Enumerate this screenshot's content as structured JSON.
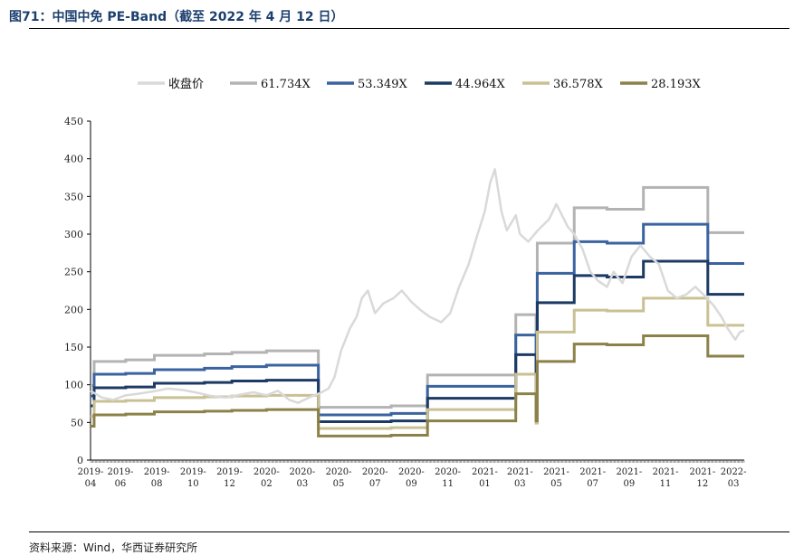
{
  "header": {
    "title": "图71：中国中免 PE-Band（截至 2022 年 4 月 12 日）"
  },
  "footer": {
    "source": "资料来源：Wind，华西证券研究所"
  },
  "chart_data": {
    "type": "line",
    "ylim": [
      0,
      450
    ],
    "yticks": [
      0,
      50,
      100,
      150,
      200,
      250,
      300,
      350,
      400,
      450
    ],
    "x_range": [
      "2019-04-12",
      "2022-04-12"
    ],
    "xticks": [
      {
        "date": "2019-04-01",
        "label": [
          "2019-",
          "04"
        ]
      },
      {
        "date": "2019-06-01",
        "label": [
          "2019-",
          "06"
        ]
      },
      {
        "date": "2019-08-01",
        "label": [
          "2019-",
          "08"
        ]
      },
      {
        "date": "2019-10-01",
        "label": [
          "2019-",
          "10"
        ]
      },
      {
        "date": "2019-12-01",
        "label": [
          "2019-",
          "12"
        ]
      },
      {
        "date": "2020-02-01",
        "label": [
          "2020-",
          "02"
        ]
      },
      {
        "date": "2020-04-01",
        "label": [
          "2020-",
          "03"
        ]
      },
      {
        "date": "2020-06-01",
        "label": [
          "2020-",
          "05"
        ]
      },
      {
        "date": "2020-08-01",
        "label": [
          "2020-",
          "07"
        ]
      },
      {
        "date": "2020-10-01",
        "label": [
          "2020-",
          "09"
        ]
      },
      {
        "date": "2020-12-01",
        "label": [
          "2020-",
          "11"
        ]
      },
      {
        "date": "2021-02-01",
        "label": [
          "2021-",
          "01"
        ]
      },
      {
        "date": "2021-04-01",
        "label": [
          "2021-",
          "03"
        ]
      },
      {
        "date": "2021-06-01",
        "label": [
          "2021-",
          "05"
        ]
      },
      {
        "date": "2021-08-01",
        "label": [
          "2021-",
          "07"
        ]
      },
      {
        "date": "2021-10-01",
        "label": [
          "2021-",
          "09"
        ]
      },
      {
        "date": "2021-12-01",
        "label": [
          "2021-",
          "11"
        ]
      },
      {
        "date": "2022-02-01",
        "label": [
          "2021-",
          "12"
        ]
      },
      {
        "date": "2022-03-25",
        "label": [
          "2022-",
          "03"
        ]
      }
    ],
    "grid": false,
    "legend_position": "top",
    "series": [
      {
        "name": "收盘价",
        "color": "#d9d9d9",
        "kind": "price",
        "points": [
          [
            "2019-04-12",
            92
          ],
          [
            "2019-05-01",
            83
          ],
          [
            "2019-05-20",
            80
          ],
          [
            "2019-06-10",
            86
          ],
          [
            "2019-07-01",
            88
          ],
          [
            "2019-07-25",
            91
          ],
          [
            "2019-08-20",
            95
          ],
          [
            "2019-09-15",
            93
          ],
          [
            "2019-10-10",
            89
          ],
          [
            "2019-11-01",
            85
          ],
          [
            "2019-11-25",
            83
          ],
          [
            "2019-12-20",
            87
          ],
          [
            "2020-01-10",
            90
          ],
          [
            "2020-02-01",
            86
          ],
          [
            "2020-02-20",
            92
          ],
          [
            "2020-03-10",
            80
          ],
          [
            "2020-03-25",
            76
          ],
          [
            "2020-04-15",
            84
          ],
          [
            "2020-05-01",
            89
          ],
          [
            "2020-05-15",
            95
          ],
          [
            "2020-05-25",
            110
          ],
          [
            "2020-06-05",
            145
          ],
          [
            "2020-06-20",
            175
          ],
          [
            "2020-07-01",
            190
          ],
          [
            "2020-07-10",
            215
          ],
          [
            "2020-07-20",
            225
          ],
          [
            "2020-08-01",
            195
          ],
          [
            "2020-08-15",
            208
          ],
          [
            "2020-09-01",
            215
          ],
          [
            "2020-09-15",
            225
          ],
          [
            "2020-10-01",
            210
          ],
          [
            "2020-10-15",
            200
          ],
          [
            "2020-11-01",
            190
          ],
          [
            "2020-11-20",
            183
          ],
          [
            "2020-12-05",
            195
          ],
          [
            "2020-12-20",
            230
          ],
          [
            "2021-01-05",
            260
          ],
          [
            "2021-01-20",
            300
          ],
          [
            "2021-02-01",
            330
          ],
          [
            "2021-02-10",
            368
          ],
          [
            "2021-02-18",
            386
          ],
          [
            "2021-03-01",
            330
          ],
          [
            "2021-03-10",
            305
          ],
          [
            "2021-03-25",
            325
          ],
          [
            "2021-04-01",
            300
          ],
          [
            "2021-04-15",
            290
          ],
          [
            "2021-05-01",
            305
          ],
          [
            "2021-05-20",
            320
          ],
          [
            "2021-06-01",
            340
          ],
          [
            "2021-06-20",
            310
          ],
          [
            "2021-07-01",
            300
          ],
          [
            "2021-07-15",
            280
          ],
          [
            "2021-07-28",
            250
          ],
          [
            "2021-08-10",
            238
          ],
          [
            "2021-08-25",
            230
          ],
          [
            "2021-09-05",
            250
          ],
          [
            "2021-09-20",
            235
          ],
          [
            "2021-10-05",
            270
          ],
          [
            "2021-10-20",
            285
          ],
          [
            "2021-11-05",
            270
          ],
          [
            "2021-11-20",
            260
          ],
          [
            "2021-12-05",
            225
          ],
          [
            "2021-12-20",
            215
          ],
          [
            "2022-01-05",
            220
          ],
          [
            "2022-01-20",
            230
          ],
          [
            "2022-02-05",
            218
          ],
          [
            "2022-02-20",
            205
          ],
          [
            "2022-03-05",
            190
          ],
          [
            "2022-03-15",
            175
          ],
          [
            "2022-03-28",
            160
          ],
          [
            "2022-04-05",
            170
          ],
          [
            "2022-04-12",
            172
          ]
        ]
      },
      {
        "name": "61.734X",
        "color": "#b3b3b3",
        "kind": "step",
        "steps": [
          [
            "2019-04-12",
            99
          ],
          [
            "2019-04-18",
            131
          ],
          [
            "2019-06-10",
            133
          ],
          [
            "2019-07-28",
            139
          ],
          [
            "2019-10-20",
            141
          ],
          [
            "2019-12-05",
            143
          ],
          [
            "2020-02-01",
            145
          ],
          [
            "2020-04-01",
            145
          ],
          [
            "2020-04-28",
            70
          ],
          [
            "2020-08-28",
            72
          ],
          [
            "2020-10-28",
            113
          ],
          [
            "2021-03-25",
            193
          ],
          [
            "2021-04-28",
            82
          ],
          [
            "2021-04-30",
            288
          ],
          [
            "2021-07-01",
            335
          ],
          [
            "2021-08-25",
            333
          ],
          [
            "2021-10-25",
            362
          ],
          [
            "2022-02-10",
            302
          ],
          [
            "2022-04-12",
            302
          ]
        ]
      },
      {
        "name": "53.349X",
        "color": "#3a63a0",
        "kind": "step",
        "steps": [
          [
            "2019-04-12",
            85
          ],
          [
            "2019-04-18",
            114
          ],
          [
            "2019-06-10",
            115
          ],
          [
            "2019-07-28",
            120
          ],
          [
            "2019-10-20",
            122
          ],
          [
            "2019-12-05",
            124
          ],
          [
            "2020-02-01",
            126
          ],
          [
            "2020-04-01",
            126
          ],
          [
            "2020-04-28",
            60
          ],
          [
            "2020-08-28",
            62
          ],
          [
            "2020-10-28",
            98
          ],
          [
            "2021-03-25",
            166
          ],
          [
            "2021-04-28",
            71
          ],
          [
            "2021-04-30",
            248
          ],
          [
            "2021-07-01",
            290
          ],
          [
            "2021-08-25",
            288
          ],
          [
            "2021-10-25",
            313
          ],
          [
            "2022-02-10",
            261
          ],
          [
            "2022-04-12",
            261
          ]
        ]
      },
      {
        "name": "44.964X",
        "color": "#1c3a63",
        "kind": "step",
        "steps": [
          [
            "2019-04-12",
            72
          ],
          [
            "2019-04-18",
            96
          ],
          [
            "2019-06-10",
            97
          ],
          [
            "2019-07-28",
            102
          ],
          [
            "2019-10-20",
            103
          ],
          [
            "2019-12-05",
            105
          ],
          [
            "2020-02-01",
            106
          ],
          [
            "2020-04-01",
            106
          ],
          [
            "2020-04-28",
            51
          ],
          [
            "2020-08-28",
            52
          ],
          [
            "2020-10-28",
            82
          ],
          [
            "2021-03-25",
            140
          ],
          [
            "2021-04-28",
            60
          ],
          [
            "2021-04-30",
            209
          ],
          [
            "2021-07-01",
            245
          ],
          [
            "2021-08-25",
            243
          ],
          [
            "2021-10-25",
            264
          ],
          [
            "2022-02-10",
            220
          ],
          [
            "2022-04-12",
            220
          ]
        ]
      },
      {
        "name": "36.578X",
        "color": "#c9c194",
        "kind": "step",
        "steps": [
          [
            "2019-04-12",
            58
          ],
          [
            "2019-04-18",
            78
          ],
          [
            "2019-06-10",
            79
          ],
          [
            "2019-07-28",
            83
          ],
          [
            "2019-10-20",
            84
          ],
          [
            "2019-12-05",
            85
          ],
          [
            "2020-02-01",
            86
          ],
          [
            "2020-04-01",
            86
          ],
          [
            "2020-04-28",
            42
          ],
          [
            "2020-08-28",
            43
          ],
          [
            "2020-10-28",
            67
          ],
          [
            "2021-03-25",
            114
          ],
          [
            "2021-04-28",
            49
          ],
          [
            "2021-04-30",
            170
          ],
          [
            "2021-07-01",
            199
          ],
          [
            "2021-08-25",
            198
          ],
          [
            "2021-10-25",
            215
          ],
          [
            "2022-02-10",
            179
          ],
          [
            "2022-04-12",
            179
          ]
        ]
      },
      {
        "name": "28.193X",
        "color": "#8c8148",
        "kind": "step",
        "steps": [
          [
            "2019-04-12",
            45
          ],
          [
            "2019-04-18",
            60
          ],
          [
            "2019-06-10",
            61
          ],
          [
            "2019-07-28",
            64
          ],
          [
            "2019-10-20",
            65
          ],
          [
            "2019-12-05",
            66
          ],
          [
            "2020-02-01",
            67
          ],
          [
            "2020-04-01",
            67
          ],
          [
            "2020-04-28",
            32
          ],
          [
            "2020-08-28",
            33
          ],
          [
            "2020-10-28",
            52
          ],
          [
            "2021-03-25",
            88
          ],
          [
            "2021-04-28",
            52
          ],
          [
            "2021-04-30",
            131
          ],
          [
            "2021-07-01",
            154
          ],
          [
            "2021-08-25",
            153
          ],
          [
            "2021-10-25",
            165
          ],
          [
            "2022-02-10",
            138
          ],
          [
            "2022-04-12",
            138
          ]
        ]
      }
    ]
  }
}
